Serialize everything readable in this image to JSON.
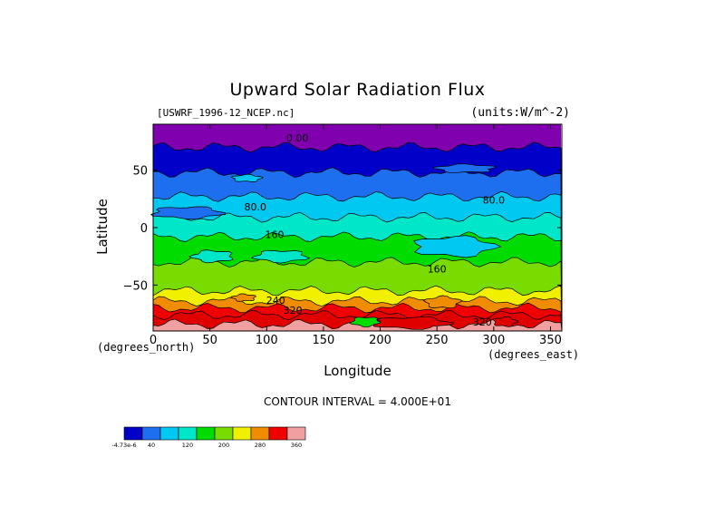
{
  "chart_data": {
    "type": "heatmap",
    "title": "Upward Solar Radiation Flux",
    "subtitle_left": "[USWRF_1996-12_NCEP.nc]",
    "subtitle_right": "(units:W/m^-2)",
    "xlabel": "Longitude",
    "ylabel": "Latitude",
    "x_unit_label": "(degrees_east)",
    "y_unit_label": "(degrees_north)",
    "xlim": [
      0,
      360
    ],
    "ylim": [
      -90,
      90
    ],
    "xticks": [
      0,
      50,
      100,
      150,
      200,
      250,
      300,
      350
    ],
    "yticks": [
      50,
      0,
      -50
    ],
    "contour_interval_text": "CONTOUR INTERVAL = 4.000E+01",
    "contour_labels": [
      {
        "text": "0.00",
        "x": 127,
        "y": 78
      },
      {
        "text": "80.0",
        "x": 300,
        "y": 24
      },
      {
        "text": "80.0",
        "x": 90,
        "y": 18
      },
      {
        "text": "160",
        "x": 107,
        "y": -6
      },
      {
        "text": "160",
        "x": 250,
        "y": -36
      },
      {
        "text": "240",
        "x": 108,
        "y": -63
      },
      {
        "text": "320",
        "x": 123,
        "y": -72
      },
      {
        "text": "320",
        "x": 290,
        "y": -82
      }
    ],
    "bands": [
      {
        "lat_top": 90,
        "lat_bottom": 70,
        "level": 0
      },
      {
        "lat_top": 70,
        "lat_bottom": 48,
        "level": 1
      },
      {
        "lat_top": 48,
        "lat_bottom": 27,
        "level": 2
      },
      {
        "lat_top": 27,
        "lat_bottom": 9,
        "level": 3
      },
      {
        "lat_top": 9,
        "lat_bottom": -8,
        "level": 4
      },
      {
        "lat_top": -8,
        "lat_bottom": -30,
        "level": 5
      },
      {
        "lat_top": -30,
        "lat_bottom": -55,
        "level": 6
      },
      {
        "lat_top": -55,
        "lat_bottom": -64,
        "level": 7
      },
      {
        "lat_top": -64,
        "lat_bottom": -70,
        "level": 8
      },
      {
        "lat_top": -70,
        "lat_bottom": -76,
        "level": 9
      },
      {
        "lat_top": -76,
        "lat_bottom": -84,
        "level": 10
      },
      {
        "lat_top": -84,
        "lat_bottom": -90,
        "level": 11
      }
    ],
    "patches": [
      {
        "lon": [
          175,
          200
        ],
        "lat": [
          -78,
          -86
        ],
        "level": 5
      },
      {
        "lon": [
          195,
          260
        ],
        "lat": [
          -78,
          -88
        ],
        "level": 10
      },
      {
        "lon": [
          300,
          320
        ],
        "lat": [
          -78,
          -86
        ],
        "level": 10
      },
      {
        "lon": [
          240,
          270
        ],
        "lat": [
          -60,
          -70
        ],
        "level": 8
      },
      {
        "lon": [
          70,
          90
        ],
        "lat": [
          -58,
          -64
        ],
        "level": 8
      },
      {
        "lon": [
          35,
          70
        ],
        "lat": [
          -20,
          -30
        ],
        "level": 4
      },
      {
        "lon": [
          90,
          135
        ],
        "lat": [
          -20,
          -30
        ],
        "level": 4
      },
      {
        "lon": [
          0,
          60
        ],
        "lat": [
          18,
          8
        ],
        "level": 2
      },
      {
        "lon": [
          230,
          300
        ],
        "lat": [
          -8,
          -25
        ],
        "level": 3
      },
      {
        "lon": [
          70,
          95
        ],
        "lat": [
          46,
          40
        ],
        "level": 3
      },
      {
        "lon": [
          250,
          300
        ],
        "lat": [
          55,
          48
        ],
        "level": 2
      }
    ],
    "colorbar": {
      "colors": [
        "#0000c8",
        "#1e6ef0",
        "#00c8f0",
        "#00e6c8",
        "#00dc00",
        "#78dc00",
        "#f0f000",
        "#f08c00",
        "#f00000",
        "#f0a0a0"
      ],
      "labels": [
        {
          "text": "-4.73e-6",
          "slot": 0
        },
        {
          "text": "40",
          "slot": 1
        },
        {
          "text": "120",
          "slot": 3
        },
        {
          "text": "200",
          "slot": 5
        },
        {
          "text": "280",
          "slot": 7
        },
        {
          "text": "360",
          "slot": 9
        }
      ]
    },
    "level_colors": [
      "#8000b0",
      "#0000c8",
      "#1e6ef0",
      "#00c8f0",
      "#00e6c8",
      "#00dc00",
      "#78dc00",
      "#f0f000",
      "#f08c00",
      "#f00000",
      "#e00000",
      "#f0a0a0"
    ]
  }
}
